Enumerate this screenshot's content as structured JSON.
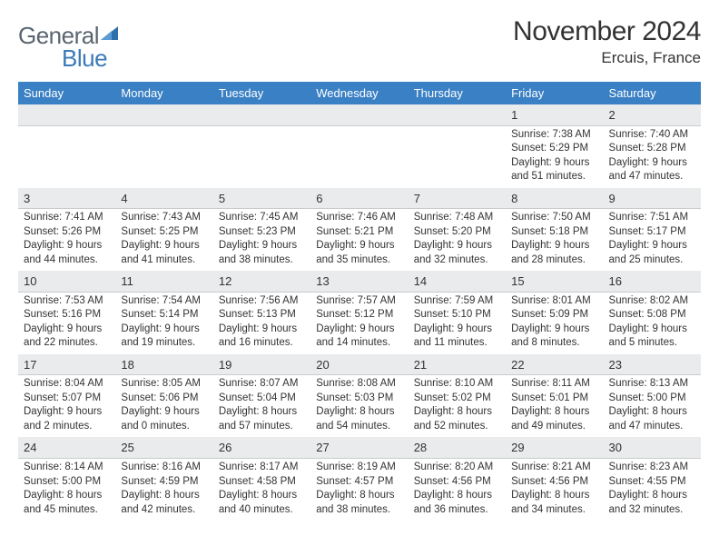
{
  "logo": {
    "text1": "General",
    "text2": "Blue"
  },
  "title": "November 2024",
  "location": "Ercuis, France",
  "colors": {
    "header_bg": "#3a80c4",
    "header_text": "#ffffff",
    "daynum_bg": "#e9ebec",
    "daynum_border": "#c9ccce",
    "body_text": "#333333",
    "logo_gray": "#5a6570",
    "logo_blue": "#3a7ab8"
  },
  "weekdays": [
    "Sunday",
    "Monday",
    "Tuesday",
    "Wednesday",
    "Thursday",
    "Friday",
    "Saturday"
  ],
  "layout": {
    "columns": 7,
    "rows": 5,
    "first_weekday_column": 5
  },
  "days": [
    {
      "n": 1,
      "sunrise": "7:38 AM",
      "sunset": "5:29 PM",
      "dl": "9 hours and 51 minutes."
    },
    {
      "n": 2,
      "sunrise": "7:40 AM",
      "sunset": "5:28 PM",
      "dl": "9 hours and 47 minutes."
    },
    {
      "n": 3,
      "sunrise": "7:41 AM",
      "sunset": "5:26 PM",
      "dl": "9 hours and 44 minutes."
    },
    {
      "n": 4,
      "sunrise": "7:43 AM",
      "sunset": "5:25 PM",
      "dl": "9 hours and 41 minutes."
    },
    {
      "n": 5,
      "sunrise": "7:45 AM",
      "sunset": "5:23 PM",
      "dl": "9 hours and 38 minutes."
    },
    {
      "n": 6,
      "sunrise": "7:46 AM",
      "sunset": "5:21 PM",
      "dl": "9 hours and 35 minutes."
    },
    {
      "n": 7,
      "sunrise": "7:48 AM",
      "sunset": "5:20 PM",
      "dl": "9 hours and 32 minutes."
    },
    {
      "n": 8,
      "sunrise": "7:50 AM",
      "sunset": "5:18 PM",
      "dl": "9 hours and 28 minutes."
    },
    {
      "n": 9,
      "sunrise": "7:51 AM",
      "sunset": "5:17 PM",
      "dl": "9 hours and 25 minutes."
    },
    {
      "n": 10,
      "sunrise": "7:53 AM",
      "sunset": "5:16 PM",
      "dl": "9 hours and 22 minutes."
    },
    {
      "n": 11,
      "sunrise": "7:54 AM",
      "sunset": "5:14 PM",
      "dl": "9 hours and 19 minutes."
    },
    {
      "n": 12,
      "sunrise": "7:56 AM",
      "sunset": "5:13 PM",
      "dl": "9 hours and 16 minutes."
    },
    {
      "n": 13,
      "sunrise": "7:57 AM",
      "sunset": "5:12 PM",
      "dl": "9 hours and 14 minutes."
    },
    {
      "n": 14,
      "sunrise": "7:59 AM",
      "sunset": "5:10 PM",
      "dl": "9 hours and 11 minutes."
    },
    {
      "n": 15,
      "sunrise": "8:01 AM",
      "sunset": "5:09 PM",
      "dl": "9 hours and 8 minutes."
    },
    {
      "n": 16,
      "sunrise": "8:02 AM",
      "sunset": "5:08 PM",
      "dl": "9 hours and 5 minutes."
    },
    {
      "n": 17,
      "sunrise": "8:04 AM",
      "sunset": "5:07 PM",
      "dl": "9 hours and 2 minutes."
    },
    {
      "n": 18,
      "sunrise": "8:05 AM",
      "sunset": "5:06 PM",
      "dl": "9 hours and 0 minutes."
    },
    {
      "n": 19,
      "sunrise": "8:07 AM",
      "sunset": "5:04 PM",
      "dl": "8 hours and 57 minutes."
    },
    {
      "n": 20,
      "sunrise": "8:08 AM",
      "sunset": "5:03 PM",
      "dl": "8 hours and 54 minutes."
    },
    {
      "n": 21,
      "sunrise": "8:10 AM",
      "sunset": "5:02 PM",
      "dl": "8 hours and 52 minutes."
    },
    {
      "n": 22,
      "sunrise": "8:11 AM",
      "sunset": "5:01 PM",
      "dl": "8 hours and 49 minutes."
    },
    {
      "n": 23,
      "sunrise": "8:13 AM",
      "sunset": "5:00 PM",
      "dl": "8 hours and 47 minutes."
    },
    {
      "n": 24,
      "sunrise": "8:14 AM",
      "sunset": "5:00 PM",
      "dl": "8 hours and 45 minutes."
    },
    {
      "n": 25,
      "sunrise": "8:16 AM",
      "sunset": "4:59 PM",
      "dl": "8 hours and 42 minutes."
    },
    {
      "n": 26,
      "sunrise": "8:17 AM",
      "sunset": "4:58 PM",
      "dl": "8 hours and 40 minutes."
    },
    {
      "n": 27,
      "sunrise": "8:19 AM",
      "sunset": "4:57 PM",
      "dl": "8 hours and 38 minutes."
    },
    {
      "n": 28,
      "sunrise": "8:20 AM",
      "sunset": "4:56 PM",
      "dl": "8 hours and 36 minutes."
    },
    {
      "n": 29,
      "sunrise": "8:21 AM",
      "sunset": "4:56 PM",
      "dl": "8 hours and 34 minutes."
    },
    {
      "n": 30,
      "sunrise": "8:23 AM",
      "sunset": "4:55 PM",
      "dl": "8 hours and 32 minutes."
    }
  ]
}
